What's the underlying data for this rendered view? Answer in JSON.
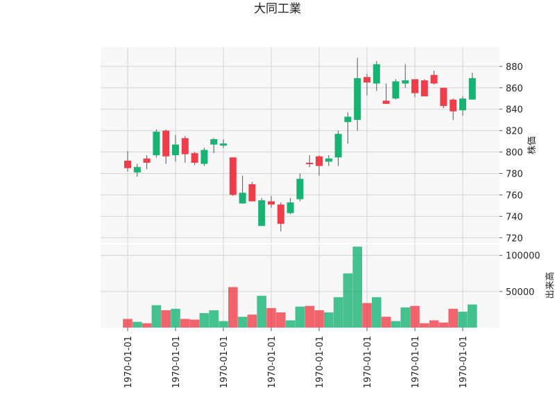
{
  "chart_data": {
    "type": "candlestick",
    "title": "大同工業",
    "ylabel_price": "株価",
    "ylabel_volume": "出来高",
    "price_ylim": [
      715,
      898
    ],
    "price_yticks": [
      720,
      740,
      760,
      780,
      800,
      820,
      840,
      860,
      880
    ],
    "volume_ylim": [
      0,
      115000
    ],
    "volume_yticks": [
      50000,
      100000
    ],
    "x_tick_labels": [
      "1970-01-01",
      "1970-01-01",
      "1970-01-01",
      "1970-01-01",
      "1970-01-01",
      "1970-01-01",
      "1970-01-01",
      "1970-01-01"
    ],
    "x_tick_index": [
      0,
      5,
      10,
      15,
      20,
      25,
      30,
      35
    ],
    "grid": true,
    "up_color": "#ef3e4a",
    "down_color": "#17b373",
    "candles": [
      {
        "o": 785,
        "h": 801,
        "l": 782,
        "c": 792,
        "v": 12000
      },
      {
        "o": 786,
        "h": 789,
        "l": 777,
        "c": 781,
        "v": 8000
      },
      {
        "o": 790,
        "h": 797,
        "l": 784,
        "c": 794,
        "v": 6000
      },
      {
        "o": 819,
        "h": 821,
        "l": 795,
        "c": 797,
        "v": 31000
      },
      {
        "o": 796,
        "h": 821,
        "l": 789,
        "c": 820,
        "v": 24000
      },
      {
        "o": 807,
        "h": 816,
        "l": 791,
        "c": 797,
        "v": 26000
      },
      {
        "o": 798,
        "h": 815,
        "l": 790,
        "c": 813,
        "v": 12000
      },
      {
        "o": 790,
        "h": 800,
        "l": 788,
        "c": 799,
        "v": 11000
      },
      {
        "o": 802,
        "h": 804,
        "l": 787,
        "c": 789,
        "v": 20000
      },
      {
        "o": 812,
        "h": 813,
        "l": 799,
        "c": 807,
        "v": 24000
      },
      {
        "o": 808,
        "h": 812,
        "l": 804,
        "c": 806,
        "v": 9000
      },
      {
        "o": 760,
        "h": 795,
        "l": 759,
        "c": 795,
        "v": 56000
      },
      {
        "o": 762,
        "h": 778,
        "l": 752,
        "c": 752,
        "v": 15000
      },
      {
        "o": 754,
        "h": 772,
        "l": 754,
        "c": 770,
        "v": 18000
      },
      {
        "o": 755,
        "h": 757,
        "l": 731,
        "c": 731,
        "v": 44000
      },
      {
        "o": 751,
        "h": 759,
        "l": 748,
        "c": 754,
        "v": 27000
      },
      {
        "o": 733,
        "h": 753,
        "l": 726,
        "c": 751,
        "v": 21000
      },
      {
        "o": 753,
        "h": 757,
        "l": 742,
        "c": 743,
        "v": 10000
      },
      {
        "o": 775,
        "h": 780,
        "l": 754,
        "c": 756,
        "v": 29000
      },
      {
        "o": 789,
        "h": 797,
        "l": 786,
        "c": 790,
        "v": 30000
      },
      {
        "o": 787,
        "h": 797,
        "l": 778,
        "c": 796,
        "v": 24000
      },
      {
        "o": 794,
        "h": 797,
        "l": 787,
        "c": 791,
        "v": 21000
      },
      {
        "o": 817,
        "h": 820,
        "l": 787,
        "c": 795,
        "v": 42000
      },
      {
        "o": 833,
        "h": 837,
        "l": 808,
        "c": 828,
        "v": 75000
      },
      {
        "o": 869,
        "h": 888,
        "l": 820,
        "c": 830,
        "v": 112000
      },
      {
        "o": 865,
        "h": 873,
        "l": 853,
        "c": 870,
        "v": 34000
      },
      {
        "o": 882,
        "h": 885,
        "l": 857,
        "c": 864,
        "v": 42000
      },
      {
        "o": 845,
        "h": 864,
        "l": 845,
        "c": 848,
        "v": 15000
      },
      {
        "o": 866,
        "h": 868,
        "l": 849,
        "c": 850,
        "v": 9000
      },
      {
        "o": 867,
        "h": 882,
        "l": 860,
        "c": 864,
        "v": 28000
      },
      {
        "o": 855,
        "h": 868,
        "l": 851,
        "c": 868,
        "v": 30000
      },
      {
        "o": 852,
        "h": 868,
        "l": 852,
        "c": 867,
        "v": 6000
      },
      {
        "o": 864,
        "h": 876,
        "l": 863,
        "c": 872,
        "v": 10000
      },
      {
        "o": 843,
        "h": 860,
        "l": 841,
        "c": 860,
        "v": 7000
      },
      {
        "o": 838,
        "h": 850,
        "l": 830,
        "c": 849,
        "v": 26000
      },
      {
        "o": 850,
        "h": 852,
        "l": 834,
        "c": 839,
        "v": 22000
      },
      {
        "o": 869,
        "h": 874,
        "l": 849,
        "c": 849,
        "v": 32000
      }
    ]
  }
}
